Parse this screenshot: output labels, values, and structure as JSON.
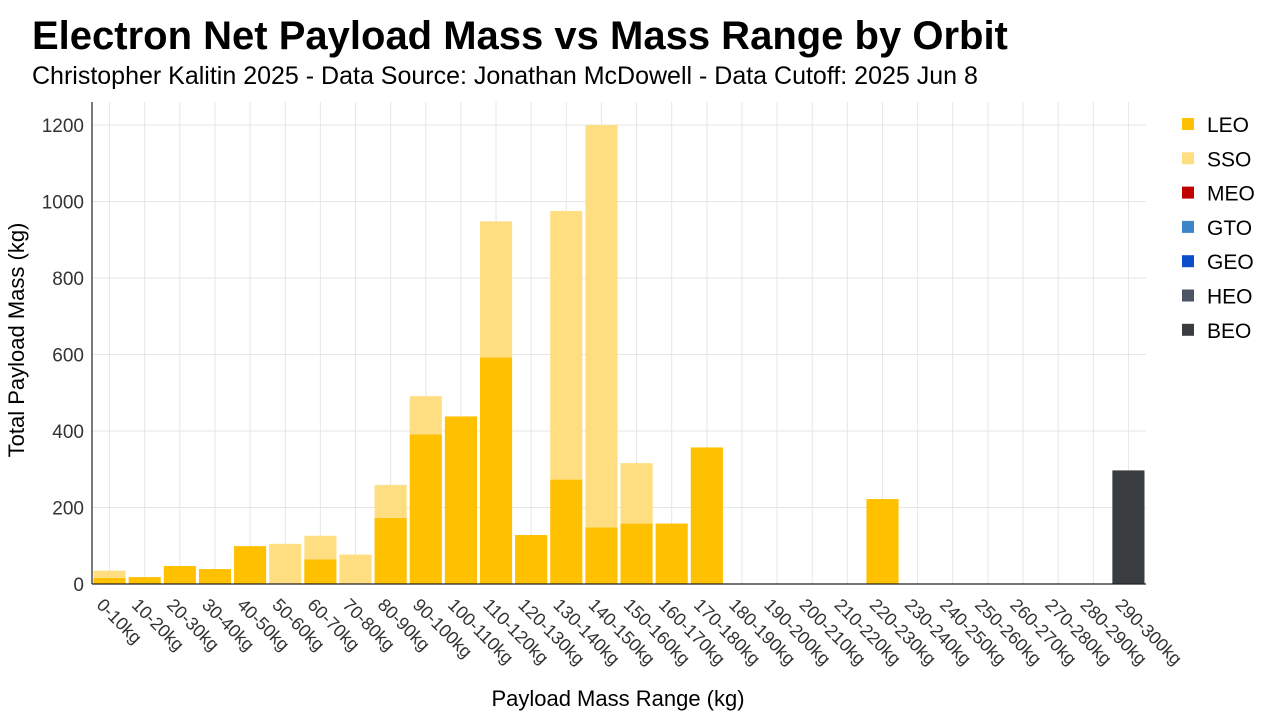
{
  "chart_data": {
    "type": "bar",
    "stacked": true,
    "title": "Electron Net Payload Mass vs Mass Range by Orbit",
    "subtitle": "Christopher Kalitin 2025 - Data Source: Jonathan McDowell - Data Cutoff: 2025 Jun 8",
    "xlabel": "Payload Mass Range (kg)",
    "ylabel": "Total Payload Mass (kg)",
    "ylim": [
      0,
      1260
    ],
    "yticks": [
      0,
      200,
      400,
      600,
      800,
      1000,
      1200
    ],
    "grid": true,
    "legend_position": "right",
    "categories": [
      "0-10kg",
      "10-20kg",
      "20-30kg",
      "30-40kg",
      "40-50kg",
      "50-60kg",
      "60-70kg",
      "70-80kg",
      "80-90kg",
      "90-100kg",
      "100-110kg",
      "110-120kg",
      "120-130kg",
      "130-140kg",
      "140-150kg",
      "150-160kg",
      "160-170kg",
      "170-180kg",
      "180-190kg",
      "190-200kg",
      "200-210kg",
      "210-220kg",
      "220-230kg",
      "230-240kg",
      "240-250kg",
      "250-260kg",
      "260-270kg",
      "270-280kg",
      "280-290kg",
      "290-300kg"
    ],
    "series": [
      {
        "name": "LEO",
        "color": "#FFC000",
        "values": [
          16,
          18,
          47,
          39,
          99,
          0,
          64,
          0,
          173,
          391,
          438,
          592,
          128,
          273,
          148,
          158,
          158,
          357,
          0,
          0,
          0,
          0,
          222,
          0,
          0,
          0,
          0,
          0,
          0,
          0
        ]
      },
      {
        "name": "SSO",
        "color": "#FFDE82",
        "values": [
          19,
          0,
          0,
          0,
          0,
          105,
          62,
          77,
          86,
          100,
          0,
          356,
          0,
          702,
          1052,
          158,
          0,
          0,
          0,
          0,
          0,
          0,
          0,
          0,
          0,
          0,
          0,
          0,
          0,
          0
        ]
      },
      {
        "name": "MEO",
        "color": "#C00000",
        "values": [
          0,
          0,
          0,
          0,
          0,
          0,
          0,
          0,
          0,
          0,
          0,
          0,
          0,
          0,
          0,
          0,
          0,
          0,
          0,
          0,
          0,
          0,
          0,
          0,
          0,
          0,
          0,
          0,
          0,
          0
        ]
      },
      {
        "name": "GTO",
        "color": "#3C85C8",
        "values": [
          0,
          0,
          0,
          0,
          0,
          0,
          0,
          0,
          0,
          0,
          0,
          0,
          0,
          0,
          0,
          0,
          0,
          0,
          0,
          0,
          0,
          0,
          0,
          0,
          0,
          0,
          0,
          0,
          0,
          0
        ]
      },
      {
        "name": "GEO",
        "color": "#0A4FC9",
        "values": [
          0,
          0,
          0,
          0,
          0,
          0,
          0,
          0,
          0,
          0,
          0,
          0,
          0,
          0,
          0,
          0,
          0,
          0,
          0,
          0,
          0,
          0,
          0,
          0,
          0,
          0,
          0,
          0,
          0,
          0
        ]
      },
      {
        "name": "HEO",
        "color": "#4B5563",
        "values": [
          0,
          0,
          0,
          0,
          0,
          0,
          0,
          0,
          0,
          0,
          0,
          0,
          0,
          0,
          0,
          0,
          0,
          0,
          0,
          0,
          0,
          0,
          0,
          0,
          0,
          0,
          0,
          0,
          0,
          0
        ]
      },
      {
        "name": "BEO",
        "color": "#3A3D40",
        "values": [
          0,
          0,
          0,
          0,
          0,
          0,
          0,
          0,
          0,
          0,
          0,
          0,
          0,
          0,
          0,
          0,
          0,
          0,
          0,
          0,
          0,
          0,
          0,
          0,
          0,
          0,
          0,
          0,
          0,
          297
        ]
      }
    ]
  }
}
